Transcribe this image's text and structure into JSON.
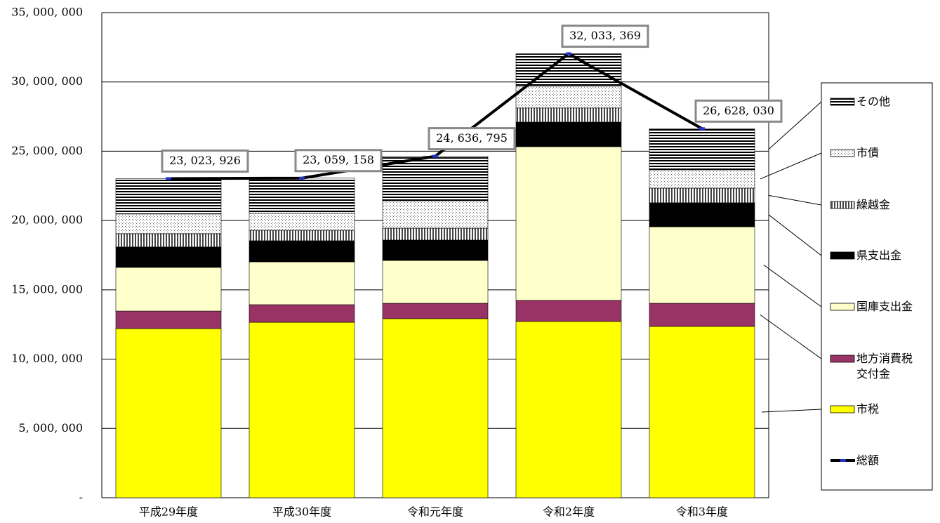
{
  "chart_data": {
    "type": "bar",
    "categories": [
      "平成29年度",
      "平成30年度",
      "令和元年度",
      "令和2年度",
      "令和3年度"
    ],
    "ylim": [
      0,
      35000000
    ],
    "yticks": [
      {
        "value": 0,
        "label": "-"
      },
      {
        "value": 5000000,
        "label": "5, 000, 000"
      },
      {
        "value": 10000000,
        "label": "10, 000, 000"
      },
      {
        "value": 15000000,
        "label": "15, 000, 000"
      },
      {
        "value": 20000000,
        "label": "20, 000, 000"
      },
      {
        "value": 25000000,
        "label": "25, 000, 000"
      },
      {
        "value": 30000000,
        "label": "30, 000, 000"
      },
      {
        "value": 35000000,
        "label": "35, 000, 000"
      }
    ],
    "grid": true,
    "stacked": true,
    "series": [
      {
        "name": "市税",
        "color": "#ffff00",
        "pattern": "solid",
        "values": [
          12200000,
          12660000,
          12920000,
          12720000,
          12360000
        ]
      },
      {
        "name": "地方消費税交付金",
        "color": "#993366",
        "pattern": "solid",
        "values": [
          1270000,
          1270000,
          1110000,
          1520000,
          1670000
        ]
      },
      {
        "name": "国庫支出金",
        "color": "#ffffcc",
        "pattern": "solid",
        "values": [
          3150000,
          3090000,
          3090000,
          11090000,
          5520000
        ]
      },
      {
        "name": "県支出金",
        "color": "#000000",
        "pattern": "solid",
        "values": [
          1470000,
          1520000,
          1470000,
          1770000,
          1730000
        ]
      },
      {
        "name": "繰越金",
        "color": "#000000",
        "pattern": "vstripe",
        "values": [
          960000,
          760000,
          860000,
          1020000,
          1060000
        ]
      },
      {
        "name": "市債",
        "color": "#000000",
        "pattern": "dots",
        "values": [
          1420000,
          1220000,
          1980000,
          1570000,
          1320000
        ]
      },
      {
        "name": "その他",
        "color": "#000000",
        "pattern": "hstripe",
        "values": [
          2553926,
          2539158,
          3206795,
          2343369,
          2968030
        ]
      },
      {
        "name": "総額",
        "color": "#000000",
        "type": "line",
        "values": [
          23023926,
          23059158,
          24636795,
          32033369,
          26628030
        ],
        "value_labels": [
          "23, 023, 926",
          "23, 059, 158",
          "24, 636, 795",
          "32, 033, 369",
          "26, 628, 030"
        ]
      }
    ]
  }
}
